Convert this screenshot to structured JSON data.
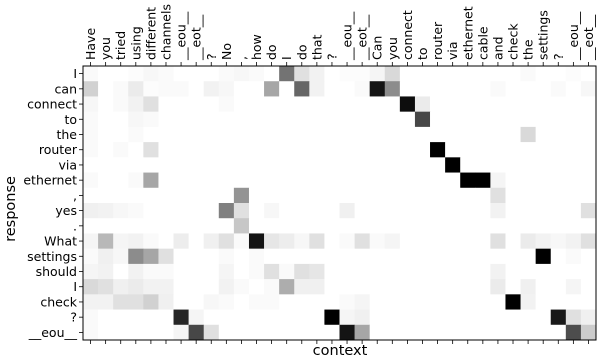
{
  "chart_data": {
    "type": "heatmap",
    "xlabel": "context",
    "ylabel": "response",
    "colormap": "greys",
    "value_range": [
      0,
      1
    ],
    "x_ticks": [
      "Have",
      "you",
      "tried",
      "using",
      "different",
      "channels",
      "__eou__",
      "__eot__",
      "?",
      "No",
      ",",
      "how",
      "do",
      "I",
      "do",
      "that",
      "?",
      "__eou__",
      "__eot__",
      "Can",
      "you",
      "connect",
      "to",
      "router",
      "via",
      "ethernet",
      "cable",
      "and",
      "check",
      "the",
      "settings",
      "?",
      "__eou__",
      "__eot__"
    ],
    "y_ticks": [
      "I",
      "can",
      "connect",
      "to",
      "the",
      "router",
      "via",
      "ethernet",
      ",",
      "yes",
      ".",
      "What",
      "settings",
      "should",
      "I",
      "check",
      "?",
      "__eou__"
    ],
    "values": [
      [
        0.02,
        0,
        0,
        0.01,
        0.03,
        0.02,
        0,
        0,
        0,
        0.02,
        0.03,
        0.02,
        0,
        0.55,
        0.12,
        0.05,
        0,
        0.01,
        0.01,
        0.04,
        0.15,
        0,
        0,
        0,
        0,
        0,
        0,
        0,
        0,
        0.02,
        0,
        0,
        0.01,
        0
      ],
      [
        0.18,
        0,
        0.02,
        0.08,
        0.01,
        0.02,
        0.02,
        0,
        0.05,
        0.03,
        0,
        0,
        0.35,
        0,
        0.6,
        0.05,
        0,
        0,
        0.02,
        0.92,
        0.45,
        0,
        0,
        0,
        0,
        0,
        0,
        0.02,
        0,
        0,
        0,
        0.02,
        0,
        0.03
      ],
      [
        0.03,
        0,
        0.02,
        0.05,
        0.12,
        0,
        0,
        0,
        0,
        0.02,
        0,
        0,
        0,
        0,
        0,
        0,
        0,
        0,
        0,
        0,
        0,
        0.95,
        0.08,
        0,
        0,
        0,
        0,
        0,
        0,
        0,
        0,
        0,
        0,
        0
      ],
      [
        0.02,
        0,
        0,
        0.03,
        0.02,
        0,
        0,
        0,
        0,
        0,
        0,
        0,
        0,
        0,
        0,
        0,
        0,
        0,
        0,
        0,
        0,
        0,
        0.72,
        0,
        0,
        0,
        0,
        0,
        0,
        0,
        0,
        0,
        0,
        0
      ],
      [
        0.02,
        0,
        0,
        0.02,
        0,
        0,
        0,
        0,
        0,
        0,
        0,
        0,
        0,
        0,
        0,
        0,
        0,
        0,
        0,
        0,
        0,
        0,
        0,
        0,
        0,
        0,
        0,
        0,
        0,
        0.15,
        0,
        0,
        0,
        0
      ],
      [
        0.02,
        0,
        0.02,
        0,
        0.12,
        0,
        0,
        0,
        0,
        0,
        0,
        0,
        0,
        0,
        0,
        0,
        0,
        0,
        0,
        0,
        0,
        0,
        0,
        1,
        0,
        0,
        0,
        0,
        0,
        0,
        0,
        0,
        0,
        0
      ],
      [
        0,
        0,
        0,
        0,
        0,
        0,
        0,
        0,
        0,
        0,
        0,
        0,
        0,
        0,
        0,
        0,
        0,
        0,
        0,
        0,
        0,
        0,
        0,
        0,
        1,
        0,
        0,
        0,
        0,
        0,
        0,
        0,
        0,
        0
      ],
      [
        0.02,
        0,
        0,
        0.02,
        0.35,
        0,
        0,
        0,
        0,
        0,
        0,
        0,
        0,
        0,
        0,
        0,
        0,
        0,
        0,
        0,
        0,
        0,
        0,
        0,
        0,
        1,
        1,
        0.04,
        0,
        0,
        0,
        0,
        0,
        0
      ],
      [
        0,
        0,
        0,
        0,
        0,
        0,
        0,
        0,
        0,
        0,
        0.42,
        0,
        0,
        0,
        0,
        0,
        0,
        0,
        0,
        0,
        0,
        0,
        0,
        0,
        0,
        0,
        0,
        0.12,
        0,
        0,
        0,
        0,
        0,
        0
      ],
      [
        0.06,
        0.05,
        0.03,
        0.02,
        0,
        0,
        0,
        0,
        0,
        0.5,
        0.12,
        0,
        0.03,
        0,
        0,
        0,
        0,
        0.06,
        0,
        0,
        0,
        0,
        0,
        0,
        0,
        0,
        0,
        0.05,
        0,
        0,
        0,
        0,
        0,
        0.12
      ],
      [
        0,
        0,
        0,
        0,
        0,
        0,
        0,
        0,
        0,
        0,
        0.22,
        0,
        0,
        0,
        0,
        0,
        0,
        0,
        0,
        0,
        0,
        0,
        0,
        0,
        0,
        0,
        0,
        0,
        0,
        0,
        0,
        0,
        0,
        0
      ],
      [
        0.04,
        0.28,
        0.04,
        0.05,
        0.02,
        0,
        0.07,
        0,
        0.06,
        0.12,
        0.02,
        0.92,
        0.1,
        0.07,
        0.03,
        0.12,
        0,
        0.02,
        0.12,
        0.02,
        0.04,
        0,
        0,
        0,
        0,
        0,
        0,
        0.12,
        0,
        0.08,
        0.05,
        0.03,
        0.05,
        0.12
      ],
      [
        0.02,
        0.06,
        0.03,
        0.45,
        0.35,
        0.12,
        0,
        0,
        0,
        0.02,
        0,
        0.02,
        0,
        0,
        0,
        0,
        0,
        0,
        0,
        0,
        0,
        0,
        0,
        0,
        0,
        0,
        0,
        0,
        0,
        0,
        1,
        0,
        0.02,
        0
      ],
      [
        0.04,
        0.05,
        0,
        0.05,
        0.02,
        0.02,
        0,
        0,
        0,
        0.04,
        0,
        0.02,
        0.12,
        0.02,
        0.12,
        0.1,
        0,
        0,
        0,
        0,
        0,
        0,
        0,
        0,
        0,
        0,
        0,
        0.05,
        0,
        0,
        0,
        0,
        0,
        0
      ],
      [
        0.15,
        0.12,
        0.06,
        0.08,
        0.05,
        0.05,
        0,
        0,
        0,
        0.05,
        0.02,
        0,
        0.02,
        0.32,
        0.06,
        0.06,
        0,
        0,
        0,
        0,
        0,
        0,
        0,
        0,
        0,
        0,
        0,
        0.08,
        0,
        0.06,
        0,
        0,
        0.04,
        0
      ],
      [
        0.05,
        0.05,
        0.12,
        0.12,
        0.18,
        0.06,
        0,
        0,
        0.03,
        0.02,
        0,
        0.02,
        0.02,
        0,
        0,
        0,
        0,
        0.02,
        0.04,
        0,
        0,
        0,
        0,
        0,
        0,
        0,
        0,
        0,
        1,
        0.05,
        0,
        0,
        0,
        0
      ],
      [
        0.02,
        0,
        0,
        0,
        0,
        0,
        0.85,
        0.04,
        0,
        0,
        0,
        0,
        0,
        0,
        0,
        0,
        1,
        0.04,
        0.06,
        0,
        0,
        0,
        0,
        0,
        0,
        0,
        0,
        0,
        0,
        0,
        0,
        0.9,
        0.12,
        0.06
      ],
      [
        0.02,
        0,
        0,
        0,
        0,
        0,
        0.04,
        0.72,
        0.12,
        0,
        0,
        0,
        0,
        0,
        0,
        0,
        0,
        0.92,
        0.35,
        0,
        0,
        0,
        0,
        0,
        0,
        0,
        0,
        0,
        0,
        0,
        0,
        0,
        0.7,
        0.2
      ]
    ]
  }
}
